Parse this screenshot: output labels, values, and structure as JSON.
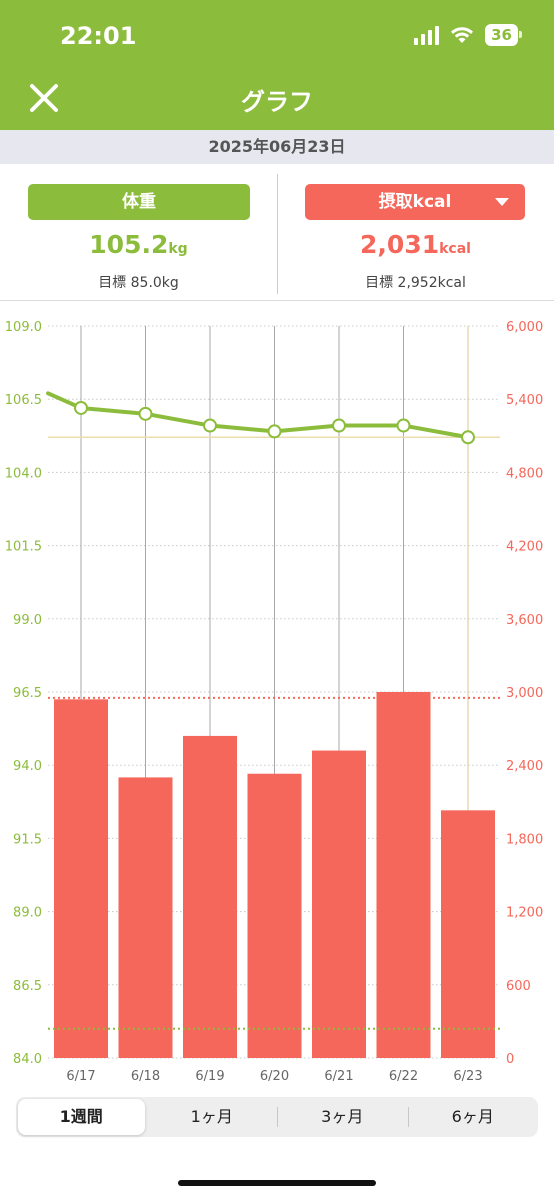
{
  "status": {
    "time": "22:01",
    "battery": "36"
  },
  "header": {
    "title": "グラフ"
  },
  "date": "2025年06月23日",
  "weight": {
    "label": "体重",
    "value": "105.2",
    "unit": "kg",
    "goal": "目標 85.0kg"
  },
  "kcal": {
    "label": "摂取kcal",
    "value": "2,031",
    "unit": "kcal",
    "goal": "目標 2,952kcal"
  },
  "colors": {
    "green": "#8cbc3c",
    "red": "#f5675a",
    "ivory": "#ecdcae"
  },
  "chart_data": {
    "type": "bar",
    "categories": [
      "6/17",
      "6/18",
      "6/19",
      "6/20",
      "6/21",
      "6/22",
      "6/23"
    ],
    "series": [
      {
        "values": [
          2940,
          2300,
          2640,
          2330,
          2520,
          3000,
          2030
        ]
      },
      {
        "values": [
          106.2,
          106.0,
          105.6,
          105.4,
          105.6,
          105.6,
          105.2
        ]
      }
    ],
    "weight_before_range": 106.7,
    "y_left": {
      "ticks": [
        "109.0",
        "106.5",
        "104.0",
        "101.5",
        "99.0",
        "96.5",
        "94.0",
        "91.5",
        "89.0",
        "86.5",
        "84.0"
      ],
      "ylim": [
        84,
        109
      ]
    },
    "y_right": {
      "ticks": [
        "6,000",
        "5,400",
        "4,800",
        "4,200",
        "3,600",
        "3,000",
        "2,400",
        "1,800",
        "1,200",
        "600",
        "0"
      ],
      "ylim": [
        0,
        6000
      ]
    },
    "kcal_goal": 2952,
    "weight_goal": 85.0,
    "reference_weight": 105.2
  },
  "tabs": [
    "1週間",
    "1ヶ月",
    "3ヶ月",
    "6ヶ月"
  ],
  "active_tab": 0
}
